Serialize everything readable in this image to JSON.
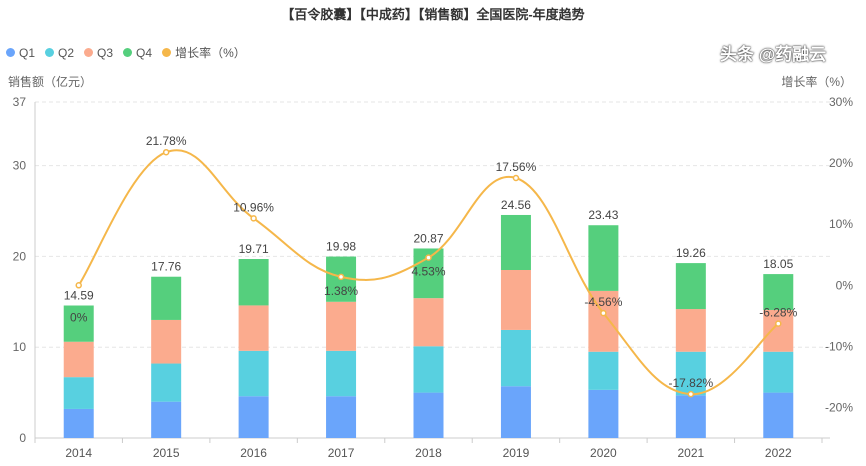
{
  "chart_data": {
    "type": "bar",
    "title": "【百令胶囊】【中成药】【销售额】全国医院-年度趋势",
    "categories": [
      "2014",
      "2015",
      "2016",
      "2017",
      "2018",
      "2019",
      "2020",
      "2021",
      "2022"
    ],
    "series": [
      {
        "name": "Q1",
        "type": "bar",
        "stack": "total",
        "color": "#6aa5fb",
        "values": [
          3.2,
          4.0,
          4.6,
          4.6,
          5.0,
          5.7,
          5.3,
          4.7,
          5.0
        ]
      },
      {
        "name": "Q2",
        "type": "bar",
        "stack": "total",
        "color": "#58d0e0",
        "values": [
          3.5,
          4.2,
          5.0,
          5.0,
          5.1,
          6.2,
          4.2,
          4.8,
          4.5
        ]
      },
      {
        "name": "Q3",
        "type": "bar",
        "stack": "total",
        "color": "#fbab8e",
        "values": [
          3.9,
          4.8,
          5.0,
          5.4,
          5.3,
          6.6,
          6.7,
          4.7,
          4.6
        ]
      },
      {
        "name": "Q4",
        "type": "bar",
        "stack": "total",
        "color": "#55cf7d",
        "values": [
          3.99,
          4.76,
          5.11,
          4.98,
          5.47,
          6.06,
          7.23,
          5.06,
          3.95
        ]
      },
      {
        "name": "增长率（%）",
        "type": "line",
        "axis": "right",
        "color": "#f5b74a",
        "values": [
          0,
          21.78,
          10.96,
          1.38,
          4.53,
          17.56,
          -4.56,
          -17.82,
          -6.28
        ]
      }
    ],
    "totals": [
      "14.59",
      "17.76",
      "19.71",
      "19.98",
      "20.87",
      "24.56",
      "23.43",
      "19.26",
      "18.05"
    ],
    "growth_labels": [
      "0%",
      "21.78%",
      "10.96%",
      "1.38%",
      "4.53%",
      "17.56%",
      "-4.56%",
      "-17.82%",
      "-6.28%"
    ],
    "ylabel": "销售额（亿元）",
    "ylabel_right": "增长率（%）",
    "ylim": [
      0,
      37
    ],
    "yticks": [
      "0",
      "10",
      "20",
      "30",
      "37"
    ],
    "ylim_right": [
      -25,
      30
    ],
    "yticks_right": [
      "30%",
      "20%",
      "10%",
      "0%",
      "-10%",
      "-20%"
    ],
    "grid": true,
    "legend_position": "top-left"
  },
  "watermark": "头条 @药融云"
}
